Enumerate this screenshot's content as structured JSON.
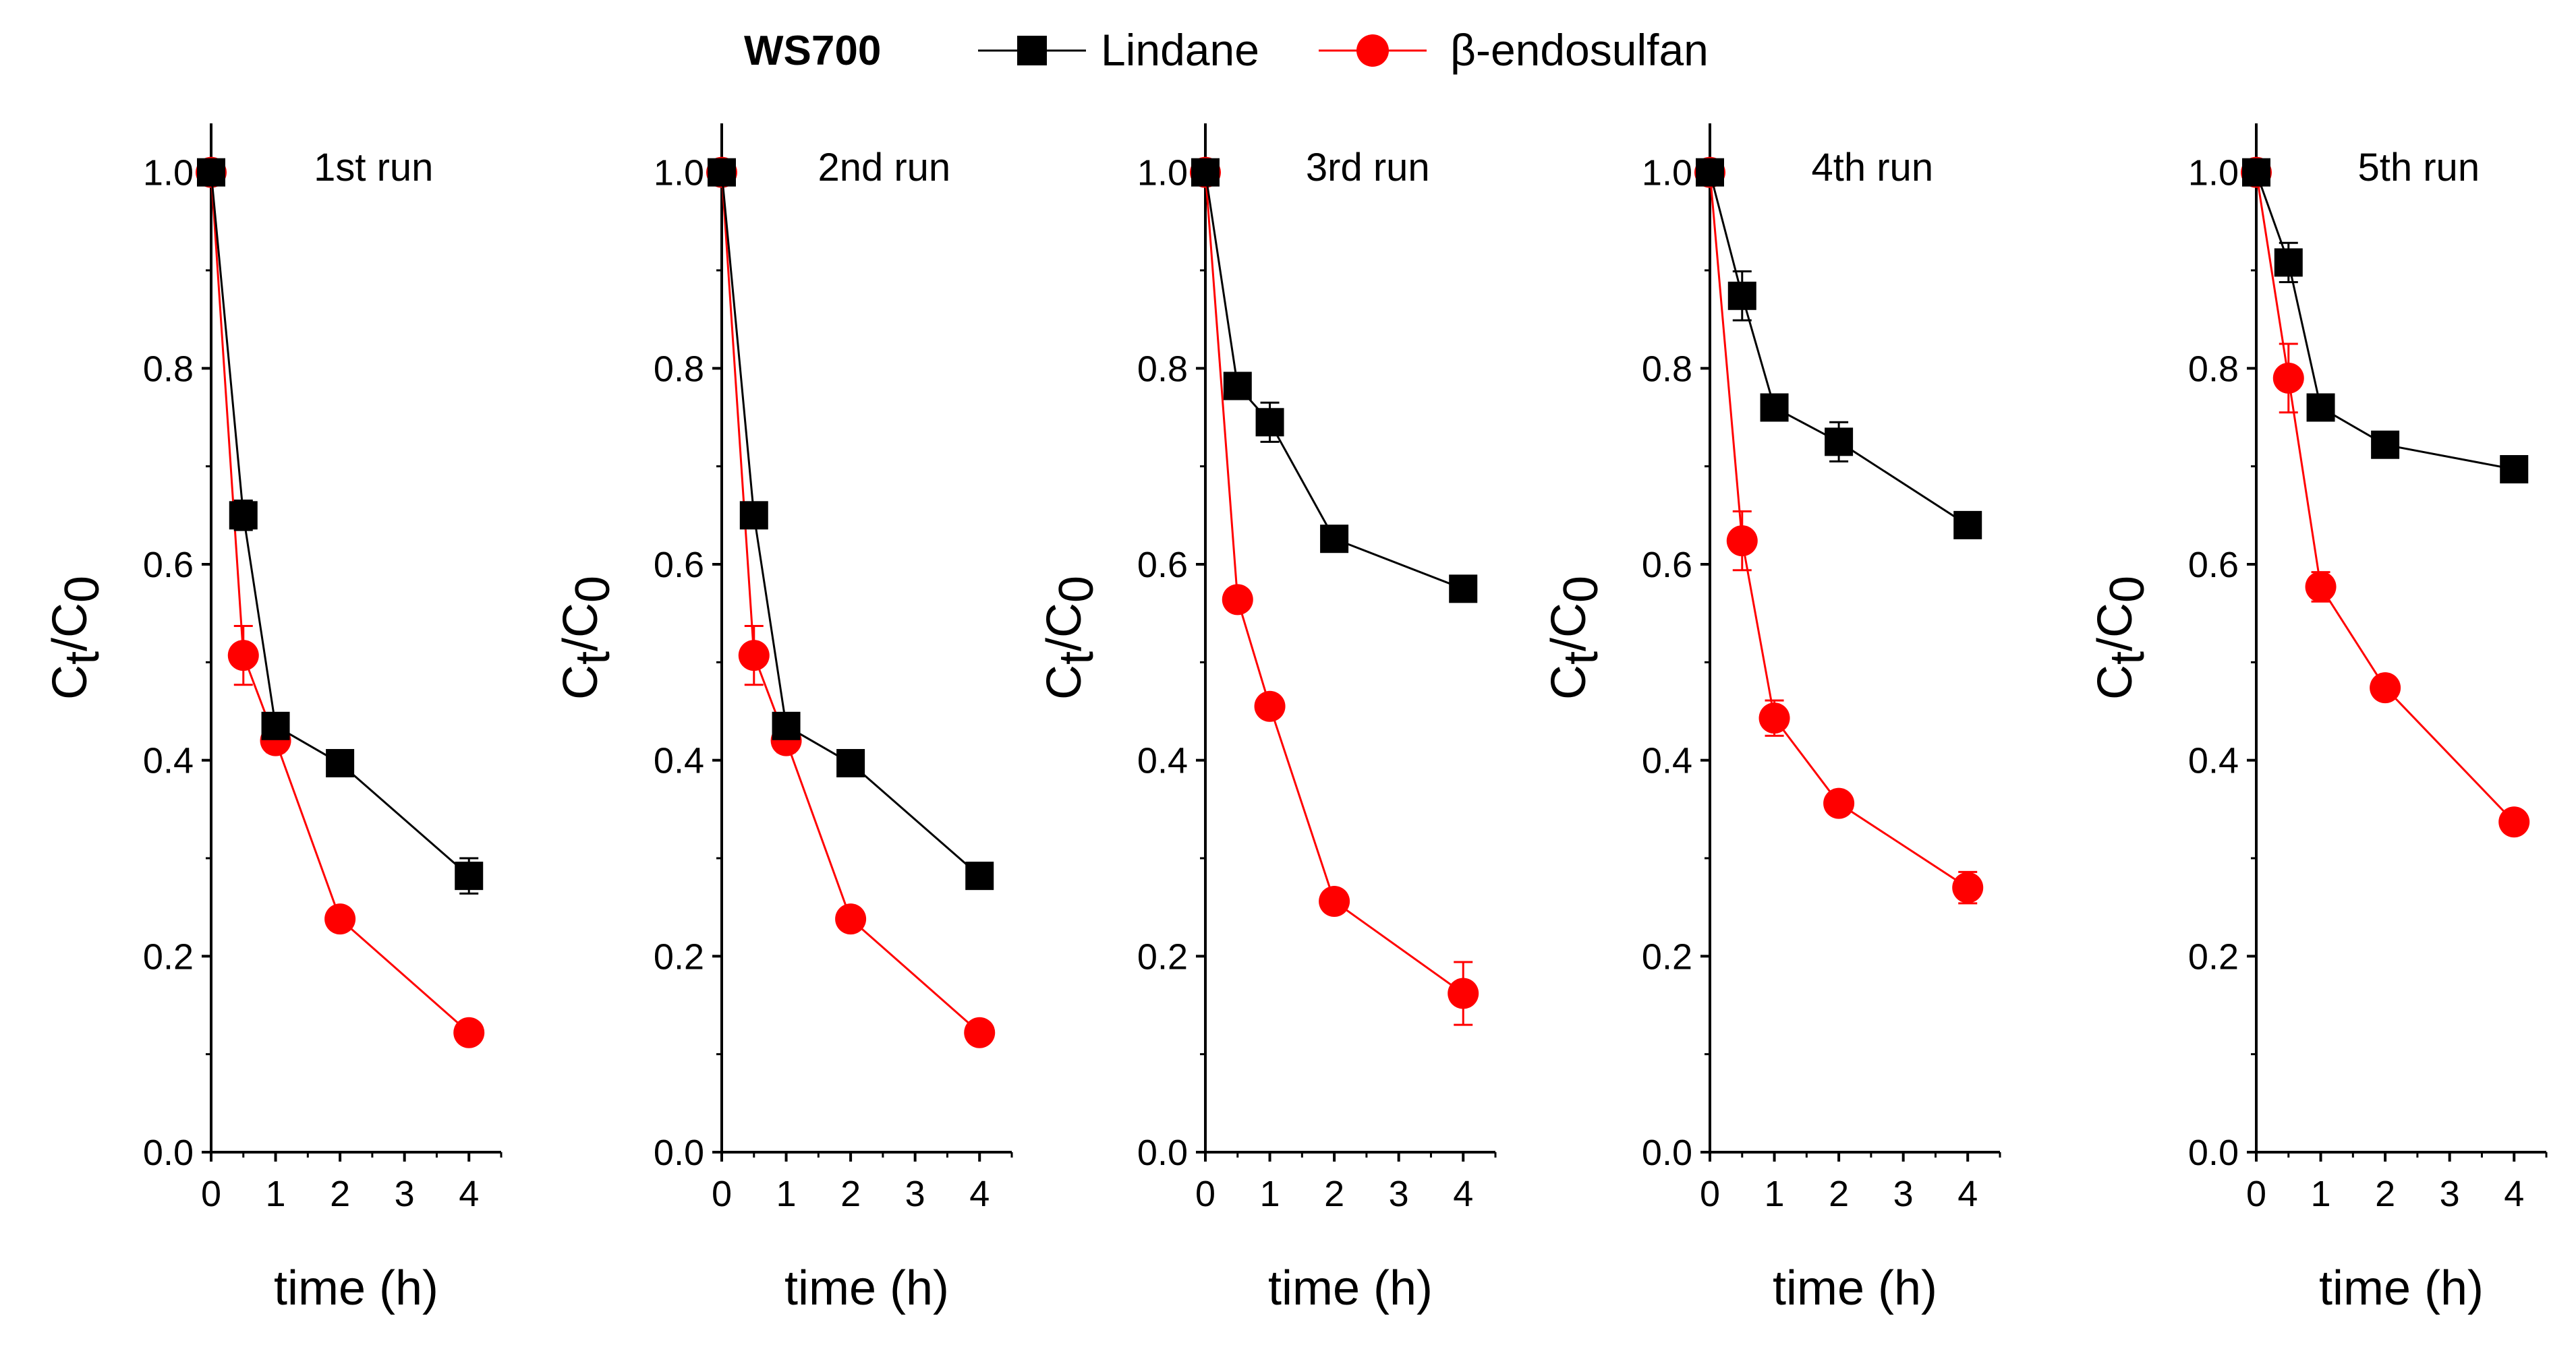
{
  "legend": {
    "title": "WS700",
    "entries": [
      {
        "label": "Lindane",
        "color": "#000000",
        "marker": "square"
      },
      {
        "label": "β-endosulfan",
        "color": "#ff0000",
        "marker": "circle"
      }
    ]
  },
  "chart_data": [
    {
      "type": "line",
      "title": "1st run",
      "xlabel": "time (h)",
      "ylabel_main": "C",
      "ylabel_sub1": "t",
      "ylabel_sep": "/C",
      "ylabel_sub2": "0",
      "xlim": [
        0,
        4.5
      ],
      "ylim": [
        0,
        1.05
      ],
      "xticks": [
        0,
        1,
        2,
        3,
        4
      ],
      "yticks": [
        0.0,
        0.2,
        0.4,
        0.6,
        0.8,
        1.0
      ],
      "ytick_labels": [
        "0.0",
        "0.2",
        "0.4",
        "0.6",
        "0.8",
        "1.0"
      ],
      "series": [
        {
          "name": "Lindane",
          "x": [
            0,
            0.5,
            1,
            2,
            4
          ],
          "y": [
            1.0,
            0.65,
            0.435,
            0.397,
            0.282
          ],
          "err": [
            0,
            0.015,
            0.012,
            0.008,
            0.018
          ]
        },
        {
          "name": "β-endosulfan",
          "x": [
            0,
            0.5,
            1,
            2,
            4
          ],
          "y": [
            1.0,
            0.507,
            0.42,
            0.238,
            0.122
          ],
          "err": [
            0,
            0.03,
            0.012,
            0.008,
            0.006
          ]
        }
      ]
    },
    {
      "type": "line",
      "title": "2nd run",
      "xlabel": "time (h)",
      "ylabel_main": "C",
      "ylabel_sub1": "t",
      "ylabel_sep": "/C",
      "ylabel_sub2": "0",
      "xlim": [
        0,
        4.5
      ],
      "ylim": [
        0,
        1.05
      ],
      "xticks": [
        0,
        1,
        2,
        3,
        4
      ],
      "yticks": [
        0.0,
        0.2,
        0.4,
        0.6,
        0.8,
        1.0
      ],
      "ytick_labels": [
        "0.0",
        "0.2",
        "0.4",
        "0.6",
        "0.8",
        "1.0"
      ],
      "series": [
        {
          "name": "Lindane",
          "x": [
            0,
            0.5,
            1,
            2,
            4
          ],
          "y": [
            1.0,
            0.65,
            0.435,
            0.397,
            0.282
          ],
          "err": [
            0,
            0.012,
            0.012,
            0.008,
            0.01
          ]
        },
        {
          "name": "β-endosulfan",
          "x": [
            0,
            0.5,
            1,
            2,
            4
          ],
          "y": [
            1.0,
            0.507,
            0.42,
            0.238,
            0.122
          ],
          "err": [
            0,
            0.03,
            0.012,
            0.008,
            0.006
          ]
        }
      ]
    },
    {
      "type": "line",
      "title": "3rd run",
      "xlabel": "time (h)",
      "ylabel_main": "C",
      "ylabel_sub1": "t",
      "ylabel_sep": "/C",
      "ylabel_sub2": "0",
      "xlim": [
        0,
        4.5
      ],
      "ylim": [
        0,
        1.05
      ],
      "xticks": [
        0,
        1,
        2,
        3,
        4
      ],
      "yticks": [
        0.0,
        0.2,
        0.4,
        0.6,
        0.8,
        1.0
      ],
      "ytick_labels": [
        "0.0",
        "0.2",
        "0.4",
        "0.6",
        "0.8",
        "1.0"
      ],
      "series": [
        {
          "name": "Lindane",
          "x": [
            0,
            0.5,
            1,
            2,
            4
          ],
          "y": [
            1.0,
            0.782,
            0.745,
            0.626,
            0.575
          ],
          "err": [
            0,
            0.01,
            0.02,
            0.008,
            0.008
          ]
        },
        {
          "name": "β-endosulfan",
          "x": [
            0,
            0.5,
            1,
            2,
            4
          ],
          "y": [
            1.0,
            0.564,
            0.455,
            0.256,
            0.162
          ],
          "err": [
            0,
            0.01,
            0.01,
            0.008,
            0.032
          ]
        }
      ]
    },
    {
      "type": "line",
      "title": "4th run",
      "xlabel": "time (h)",
      "ylabel_main": "C",
      "ylabel_sub1": "t",
      "ylabel_sep": "/C",
      "ylabel_sub2": "0",
      "xlim": [
        0,
        4.5
      ],
      "ylim": [
        0,
        1.05
      ],
      "xticks": [
        0,
        1,
        2,
        3,
        4
      ],
      "yticks": [
        0.0,
        0.2,
        0.4,
        0.6,
        0.8,
        1.0
      ],
      "ytick_labels": [
        "0.0",
        "0.2",
        "0.4",
        "0.6",
        "0.8",
        "1.0"
      ],
      "series": [
        {
          "name": "Lindane",
          "x": [
            0,
            0.5,
            1,
            2,
            4
          ],
          "y": [
            1.0,
            0.874,
            0.76,
            0.725,
            0.64
          ],
          "err": [
            0,
            0.025,
            0.01,
            0.02,
            0.008
          ]
        },
        {
          "name": "β-endosulfan",
          "x": [
            0,
            0.5,
            1,
            2,
            4
          ],
          "y": [
            1.0,
            0.624,
            0.443,
            0.356,
            0.27
          ],
          "err": [
            0,
            0.03,
            0.018,
            0.008,
            0.016
          ]
        }
      ]
    },
    {
      "type": "line",
      "title": "5th run",
      "xlabel": "time (h)",
      "ylabel_main": "C",
      "ylabel_sub1": "t",
      "ylabel_sep": "/C",
      "ylabel_sub2": "0",
      "xlim": [
        0,
        4.5
      ],
      "ylim": [
        0,
        1.05
      ],
      "xticks": [
        0,
        1,
        2,
        3,
        4
      ],
      "yticks": [
        0.0,
        0.2,
        0.4,
        0.6,
        0.8,
        1.0
      ],
      "ytick_labels": [
        "0.0",
        "0.2",
        "0.4",
        "0.6",
        "0.8",
        "1.0"
      ],
      "series": [
        {
          "name": "Lindane",
          "x": [
            0,
            0.5,
            1,
            2,
            4
          ],
          "y": [
            1.0,
            0.908,
            0.76,
            0.722,
            0.697
          ],
          "err": [
            0,
            0.02,
            0.01,
            0.008,
            0.008
          ]
        },
        {
          "name": "β-endosulfan",
          "x": [
            0,
            0.5,
            1,
            2,
            4
          ],
          "y": [
            1.0,
            0.79,
            0.577,
            0.474,
            0.337
          ],
          "err": [
            0,
            0.035,
            0.015,
            0.008,
            0.008
          ]
        }
      ]
    }
  ]
}
